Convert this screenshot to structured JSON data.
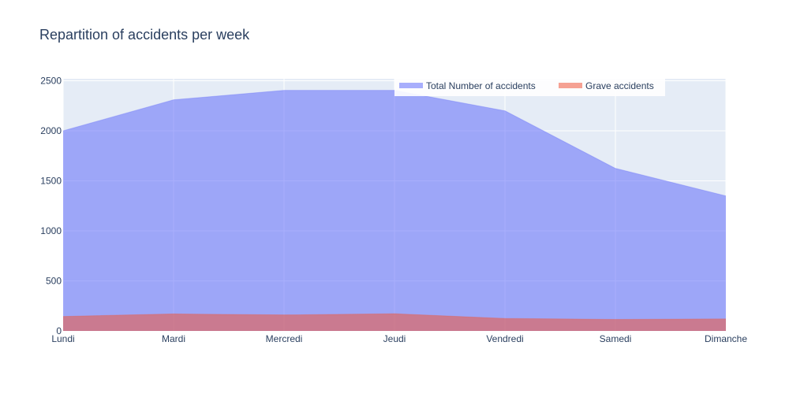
{
  "chart_data": {
    "type": "area",
    "title": "Repartition of accidents per week",
    "xlabel": "",
    "ylabel": "",
    "categories": [
      "Lundi",
      "Mardi",
      "Mercredi",
      "Jeudi",
      "Vendredi",
      "Samedi",
      "Dimanche"
    ],
    "series": [
      {
        "name": "Total Number of accidents",
        "values": [
          2000,
          2310,
          2405,
          2405,
          2200,
          1625,
          1350
        ],
        "color": "#636efa"
      },
      {
        "name": "Grave accidents",
        "values": [
          145,
          170,
          160,
          172,
          125,
          115,
          120
        ],
        "color": "#ef553b"
      }
    ],
    "ylim": [
      0,
      2520
    ],
    "yticks": [
      0,
      500,
      1000,
      1500,
      2000,
      2500
    ],
    "grid": true,
    "legend_position": "top-right",
    "plot_background": "#e5ecf6",
    "grid_color": "#ffffff"
  }
}
